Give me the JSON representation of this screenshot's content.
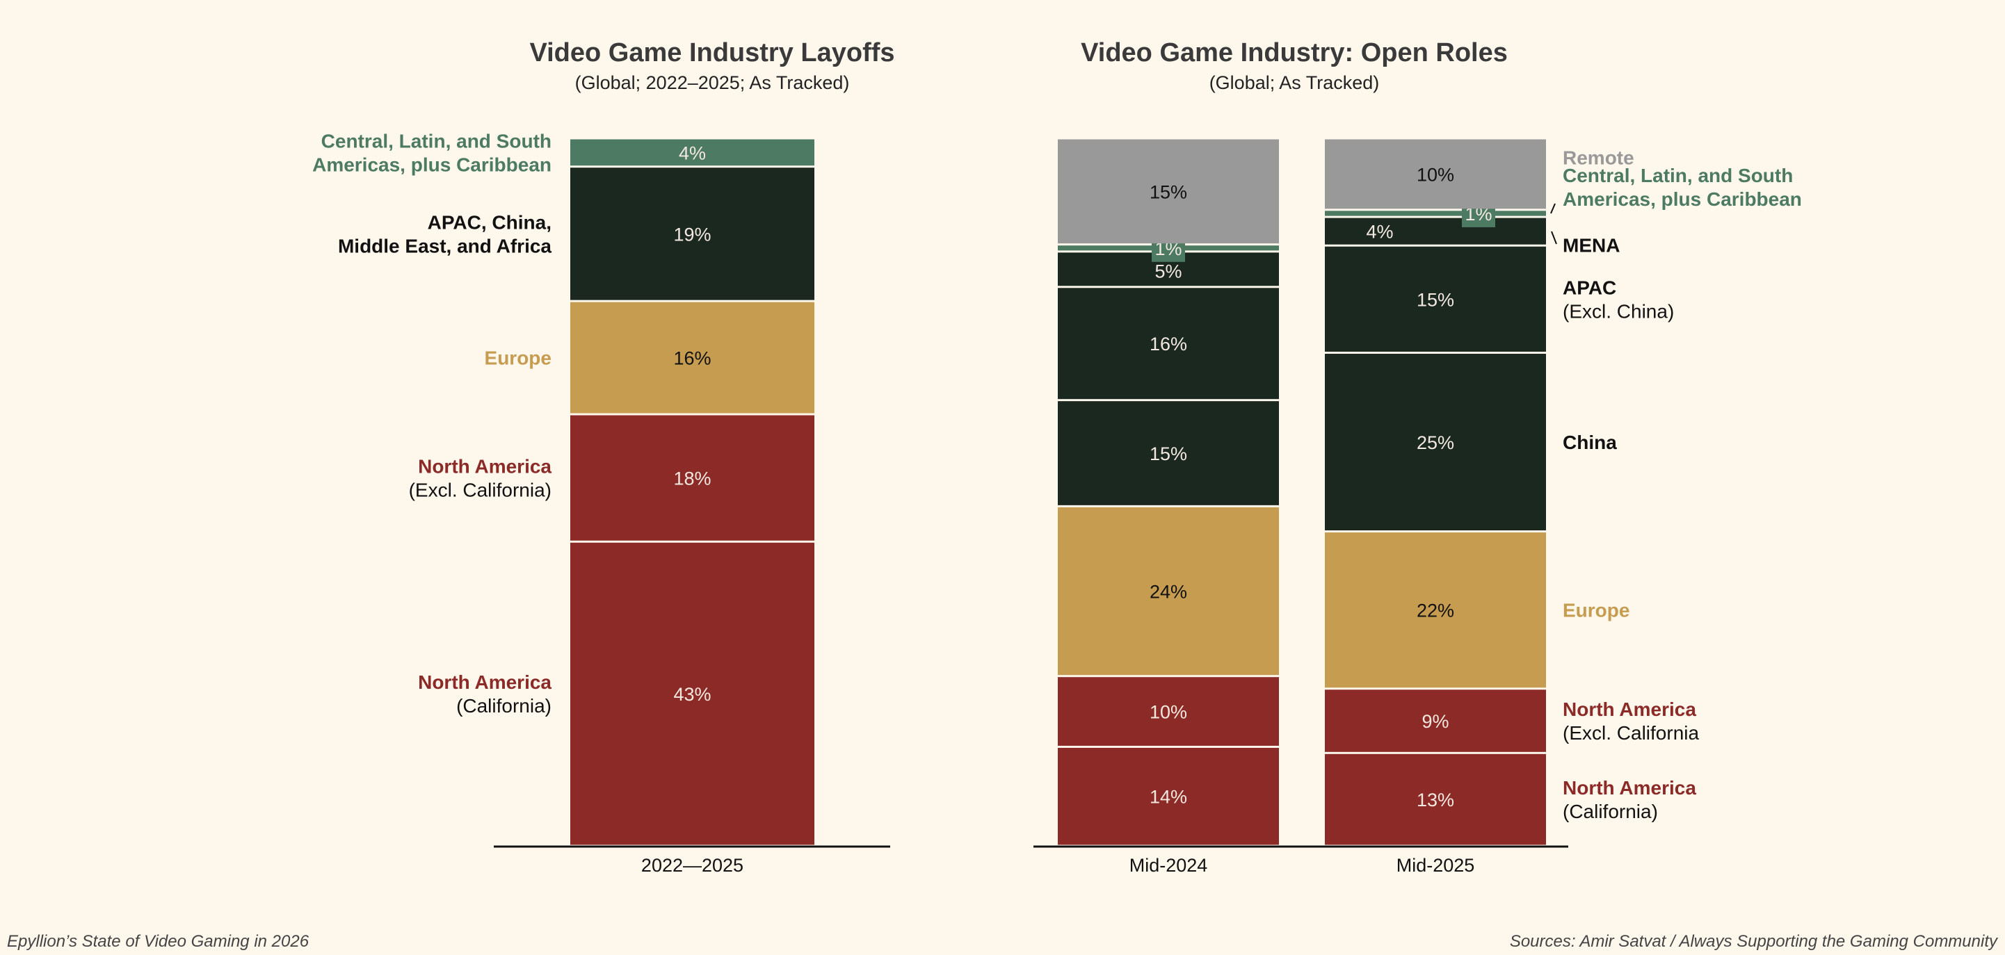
{
  "colors": {
    "background": "#fdf7ec",
    "north_america": "#8b2a26",
    "europe": "#c69c50",
    "asia": "#1b2820",
    "americas_other": "#4d7a62",
    "remote": "#999999"
  },
  "footer": {
    "left": "Epyllion’s State of Video Gaming in 2026",
    "right": "Sources: Amir Satvat / Always Supporting the Gaming Community"
  },
  "chart_data": [
    {
      "type": "bar",
      "stacked": true,
      "title": "Video Game Industry Layoffs",
      "subtitle": "(Global; 2022–2025; As Tracked)",
      "categories": [
        "2022—2025"
      ],
      "unit": "%",
      "series": [
        {
          "name": "North America (California)",
          "label": [
            "North America",
            "(California)"
          ],
          "color": "#8b2a26",
          "text": "#f3e8e0",
          "values": [
            43
          ]
        },
        {
          "name": "North America (Excl. California)",
          "label": [
            "North America",
            "(Excl. California)"
          ],
          "color": "#8b2a26",
          "text": "#f3e8e0",
          "values": [
            18
          ]
        },
        {
          "name": "Europe",
          "label": [
            "Europe"
          ],
          "color": "#c69c50",
          "text": "#111111",
          "values": [
            16
          ]
        },
        {
          "name": "APAC, China, Middle East, and Africa",
          "label": [
            "APAC, China,",
            "Middle East, and Africa"
          ],
          "color": "#1b2820",
          "text": "#f3e8e0",
          "labelColor": "#111111",
          "values": [
            19
          ]
        },
        {
          "name": "Central, Latin, and South Americas, plus Caribbean",
          "label": [
            "Central, Latin, and South",
            "Americas, plus Caribbean"
          ],
          "color": "#4d7a62",
          "text": "#f3e8e0",
          "values": [
            4
          ]
        }
      ]
    },
    {
      "type": "bar",
      "stacked": true,
      "title": "Video Game Industry: Open Roles",
      "subtitle": "(Global; As Tracked)",
      "categories": [
        "Mid-2024",
        "Mid-2025"
      ],
      "unit": "%",
      "series": [
        {
          "name": "North America (California)",
          "label": [
            "North America",
            "(California)"
          ],
          "color": "#8b2a26",
          "text": "#f3e8e0",
          "values": [
            14,
            13
          ]
        },
        {
          "name": "North America (Excl. California)",
          "label": [
            "North America",
            "(Excl. California"
          ],
          "color": "#8b2a26",
          "text": "#f3e8e0",
          "values": [
            10,
            9
          ]
        },
        {
          "name": "Europe",
          "label": [
            "Europe"
          ],
          "color": "#c69c50",
          "text": "#111111",
          "values": [
            24,
            22
          ]
        },
        {
          "name": "China",
          "label": [
            "China"
          ],
          "color": "#1b2820",
          "text": "#f3e8e0",
          "labelColor": "#111111",
          "values": [
            15,
            25
          ]
        },
        {
          "name": "APAC (Excl. China)",
          "label": [
            "APAC",
            "(Excl. China)"
          ],
          "color": "#1b2820",
          "text": "#f3e8e0",
          "labelColor": "#111111",
          "values": [
            16,
            15
          ]
        },
        {
          "name": "MENA",
          "label": [
            "MENA"
          ],
          "color": "#1b2820",
          "text": "#f3e8e0",
          "labelColor": "#111111",
          "values": [
            5,
            4
          ]
        },
        {
          "name": "Central, Latin, and South Americas, plus Caribbean",
          "label": [
            "Central, Latin, and South",
            "Americas, plus Caribbean"
          ],
          "color": "#4d7a62",
          "text": "#f3e8e0",
          "boxed": true,
          "values": [
            1,
            1
          ]
        },
        {
          "name": "Remote",
          "label": [
            "Remote"
          ],
          "color": "#999999",
          "text": "#111111",
          "values": [
            15,
            10
          ]
        }
      ]
    }
  ]
}
